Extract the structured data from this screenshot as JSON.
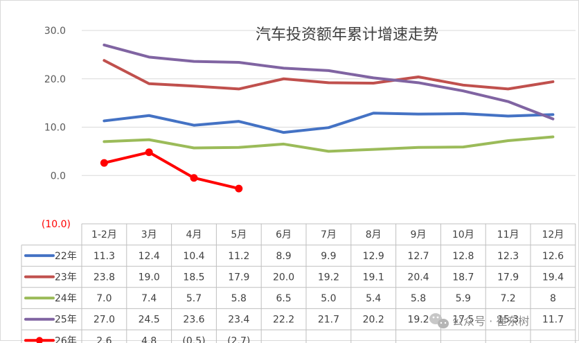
{
  "chart_data": {
    "type": "line",
    "title": "汽车投资额年累计增速走势",
    "categories": [
      "1-2月",
      "3月",
      "4月",
      "5月",
      "6月",
      "7月",
      "8月",
      "9月",
      "10月",
      "11月",
      "12月"
    ],
    "y_tick_labels": [
      "30.0",
      "20.0",
      "10.0",
      "0.0",
      "(10.0)"
    ],
    "ylim": [
      -10,
      30
    ],
    "grid": true,
    "legend": "data-table-bottom",
    "series": [
      {
        "name": "22年",
        "color": "#4472c4",
        "values": [
          11.3,
          12.4,
          10.4,
          11.2,
          8.9,
          9.9,
          12.9,
          12.7,
          12.8,
          12.3,
          12.6
        ],
        "labels": [
          "11.3",
          "12.4",
          "10.4",
          "11.2",
          "8.9",
          "9.9",
          "12.9",
          "12.7",
          "12.8",
          "12.3",
          "12.6"
        ],
        "markers": false
      },
      {
        "name": "23年",
        "color": "#c0504d",
        "values": [
          23.8,
          19.0,
          18.5,
          17.9,
          20.0,
          19.2,
          19.1,
          20.4,
          18.7,
          17.9,
          19.4
        ],
        "labels": [
          "23.8",
          "19.0",
          "18.5",
          "17.9",
          "20.0",
          "19.2",
          "19.1",
          "20.4",
          "18.7",
          "17.9",
          "19.4"
        ],
        "markers": false
      },
      {
        "name": "24年",
        "color": "#9bbb59",
        "values": [
          7.0,
          7.4,
          5.7,
          5.8,
          6.5,
          5.0,
          5.4,
          5.8,
          5.9,
          7.2,
          8
        ],
        "labels": [
          "7.0",
          "7.4",
          "5.7",
          "5.8",
          "6.5",
          "5.0",
          "5.4",
          "5.8",
          "5.9",
          "7.2",
          "8"
        ],
        "markers": false
      },
      {
        "name": "25年",
        "color": "#8064a2",
        "values": [
          27.0,
          24.5,
          23.6,
          23.4,
          22.2,
          21.7,
          20.2,
          19.2,
          17.5,
          15.3,
          11.7
        ],
        "labels": [
          "27.0",
          "24.5",
          "23.6",
          "23.4",
          "22.2",
          "21.7",
          "20.2",
          "19.2",
          "17.5",
          "15.3",
          "11.7"
        ],
        "markers": false
      },
      {
        "name": "26年",
        "color": "#ff0000",
        "values": [
          2.6,
          4.8,
          -0.5,
          -2.7,
          null,
          null,
          null,
          null,
          null,
          null,
          null
        ],
        "labels": [
          "2.6",
          "4.8",
          "(0.5)",
          "(2.7)",
          "",
          "",
          "",
          "",
          "",
          "",
          ""
        ],
        "markers": true
      }
    ]
  },
  "watermark": "公众号 · 崔东树"
}
